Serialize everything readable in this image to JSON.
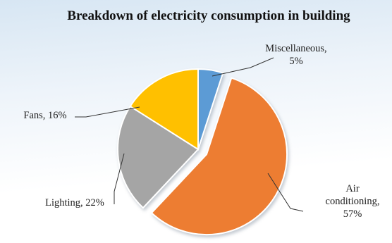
{
  "chart_data": {
    "type": "pie",
    "title": "Breakdown  of electricity consumption  in building",
    "slices": [
      {
        "name": "Miscellaneous",
        "value": 5,
        "label_lines": [
          "Miscellaneous,",
          "5%"
        ],
        "color": "#5b9bd5",
        "explode": 0
      },
      {
        "name": "Air conditioning",
        "value": 57,
        "label_lines": [
          "Air",
          "conditioning,",
          "57%"
        ],
        "color": "#ed7d31",
        "explode": 1
      },
      {
        "name": "Lighting",
        "value": 22,
        "label_lines": [
          "Lighting, 22%"
        ],
        "color": "#a5a5a5",
        "explode": 0
      },
      {
        "name": "Fans",
        "value": 16,
        "label_lines": [
          "Fans, 16%"
        ],
        "color": "#ffc000",
        "explode": 0
      }
    ],
    "start_angle_deg": 0,
    "direction": "clockwise",
    "legend": "none",
    "data_labels": "outside with leader lines"
  }
}
